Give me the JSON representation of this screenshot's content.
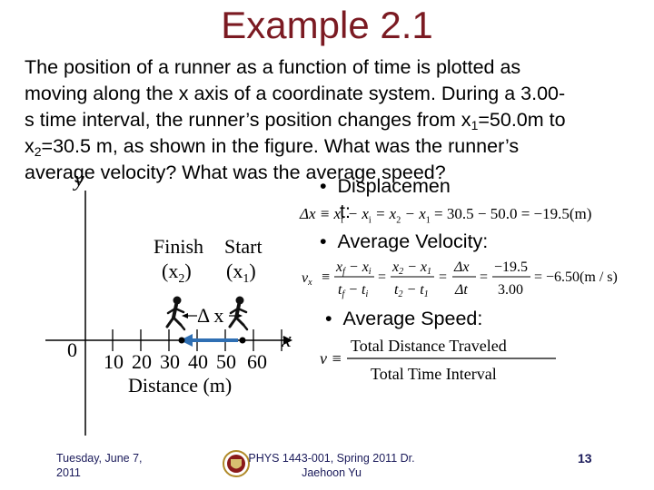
{
  "slide": {
    "title": "Example 2.1",
    "problem_lines": [
      "The position of a runner as a function of time is plotted as",
      "moving along the x axis of a coordinate system.  During a 3.00-",
      "s time interval, the runner’s position changes from x",
      "1",
      "=50.0m to",
      "x",
      "2",
      "=30.5 m, as shown in the figure.  What was the runner’s",
      "average velocity?  What was the average speed?"
    ]
  },
  "figure": {
    "y_axis_label": "y",
    "x_axis_label": "x",
    "origin_label": "0",
    "tick_labels": [
      "10",
      "20",
      "30",
      "40",
      "50",
      "60"
    ],
    "finish_label": "Finish",
    "finish_sub": "(x",
    "finish_sub_index": "2",
    "start_label": "Start",
    "start_sub": "(x",
    "start_sub_index": "1",
    "delta_label": "Δ x",
    "axis_title": "Distance (m)"
  },
  "bullets": {
    "displacement_label_a": "Displacemen",
    "displacement_label_b": "t:",
    "displacement_eq": {
      "lhs": "Δx ≡ x",
      "f": "f",
      "mid": " − x",
      "i": "i",
      "eq2": " = x",
      "two": "2",
      "minus": " − x",
      "one": "1",
      "result": " = 30.5 − 50.0 = −19.5(m)"
    },
    "avg_velocity_label": "Average Velocity:",
    "avg_velocity_eq": {
      "lhs": "v",
      "lhs_sub": "x",
      "equiv": "≡",
      "num1": "x",
      "num1_sub_f": "f",
      "num1_minus": " − x",
      "num1_sub_i": "i",
      "den1": "t",
      "den1_sub_f": "f",
      "den1_minus": " − t",
      "den1_sub_i": "i",
      "num2": "x",
      "num2_sub_2": "2",
      "num2_minus": " − x",
      "num2_sub_1": "1",
      "den2": "t",
      "den2_sub_2": "2",
      "den2_minus": " − t",
      "den2_sub_1": "1",
      "num3": "Δx",
      "den3": "Δt",
      "num4": "−19.5",
      "den4": "3.00",
      "result": "= −6.50(m / s)"
    },
    "avg_speed_label": "Average Speed:",
    "avg_speed_eq": {
      "lhs": "v ≡",
      "numerator": "Total Distance Traveled",
      "denominator": "Total Time Interval"
    }
  },
  "footer": {
    "date_line1": "Tuesday, June 7,",
    "date_line2": "2011",
    "course_line1": "PHYS 1443-001, Spring 2011 Dr.",
    "course_line2": "Jaehoon Yu",
    "page": "13"
  },
  "colors": {
    "title": "#7b1a22",
    "arrow": "#2f6fb3",
    "footer": "#1a1a5a"
  }
}
